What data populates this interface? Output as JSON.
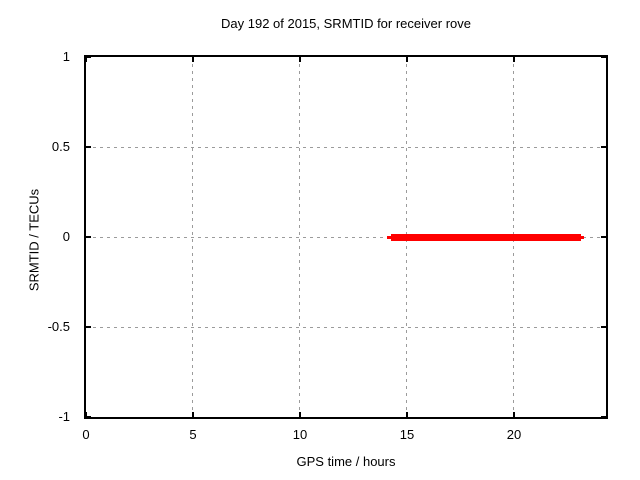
{
  "chart_data": {
    "type": "line",
    "title": "Day 192 of 2015, SRMTID for receiver rove",
    "xlabel": "GPS time / hours",
    "ylabel": "SRMTID / TECUs",
    "xlim": [
      0,
      24.3
    ],
    "ylim": [
      -1,
      1
    ],
    "xticks": [
      {
        "value": 0,
        "label": "0"
      },
      {
        "value": 5,
        "label": "5"
      },
      {
        "value": 10,
        "label": "10"
      },
      {
        "value": 15,
        "label": "15"
      },
      {
        "value": 20,
        "label": "20"
      }
    ],
    "yticks": [
      {
        "value": 1,
        "label": "1"
      },
      {
        "value": 0.5,
        "label": "0.5"
      },
      {
        "value": 0,
        "label": "0"
      },
      {
        "value": -0.5,
        "label": "-0.5"
      },
      {
        "value": -1,
        "label": "-1"
      }
    ],
    "grid": {
      "enabled": true,
      "style": "dotted",
      "color": "#9b9b9b"
    },
    "axis_color": "#000000",
    "background_color": "#ffffff",
    "legend": "none",
    "series": [
      {
        "name": "SRMTID",
        "color": "#ff0000",
        "y_value": 0,
        "x_start": 14.1,
        "x_end": 23.3,
        "segments": [
          {
            "x_start": 14.07,
            "x_end": 23.28,
            "thickness_px": 3
          },
          {
            "x_start": 14.26,
            "x_end": 23.15,
            "thickness_px": 7
          }
        ]
      }
    ]
  }
}
